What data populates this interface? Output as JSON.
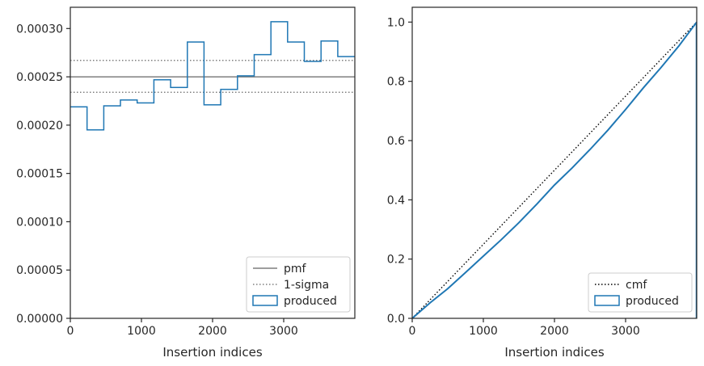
{
  "chart_data": [
    {
      "type": "step-histogram",
      "xlabel": "Insertion indices",
      "ylabel": "",
      "xlim": [
        0,
        4000
      ],
      "ylim": [
        0,
        0.000322
      ],
      "xticks": [
        0,
        1000,
        2000,
        3000
      ],
      "yticks": [
        0,
        5e-05,
        0.0001,
        0.00015,
        0.0002,
        0.00025,
        0.0003
      ],
      "ytick_labels": [
        "0.00000",
        "0.00005",
        "0.00010",
        "0.00015",
        "0.00020",
        "0.00025",
        "0.00030"
      ],
      "bin_edges": [
        0,
        235,
        470,
        705,
        940,
        1175,
        1410,
        1645,
        1880,
        2115,
        2350,
        2585,
        2820,
        3055,
        3290,
        3525,
        3760,
        4000
      ],
      "values": [
        0.000219,
        0.000195,
        0.00022,
        0.000226,
        0.000223,
        0.000247,
        0.000239,
        0.000286,
        0.000221,
        0.000237,
        0.000251,
        0.000273,
        0.000307,
        0.000286,
        0.000266,
        0.000287,
        0.000271
      ],
      "pmf": 0.00025,
      "sigma_band": [
        0.000234,
        0.000267
      ],
      "legend": {
        "position": "lower-right",
        "entries": [
          {
            "label": "pmf",
            "style": "solid-line",
            "color": "#7f7f7f"
          },
          {
            "label": "1-sigma",
            "style": "dotted-line",
            "color": "#7f7f7f"
          },
          {
            "label": "produced",
            "style": "patch",
            "color": "#1f77b4"
          }
        ]
      },
      "colors": {
        "produced": "#1f77b4",
        "reference": "#7f7f7f"
      }
    },
    {
      "type": "line",
      "xlabel": "Insertion indices",
      "ylabel": "",
      "xlim": [
        0,
        4000
      ],
      "ylim": [
        0,
        1.05
      ],
      "xticks": [
        0,
        1000,
        2000,
        3000
      ],
      "yticks": [
        0,
        0.2,
        0.4,
        0.6,
        0.8,
        1.0
      ],
      "ytick_labels": [
        "0.0",
        "0.2",
        "0.4",
        "0.6",
        "0.8",
        "1.0"
      ],
      "cmf": {
        "x": [
          0,
          4000
        ],
        "y": [
          0,
          1.0
        ],
        "style": "dotted",
        "color": "#000000"
      },
      "produced": {
        "x": [
          0,
          250,
          500,
          750,
          1000,
          1250,
          1500,
          1750,
          2000,
          2250,
          2500,
          2750,
          3000,
          3250,
          3500,
          3750,
          4000
        ],
        "y": [
          0,
          0.052,
          0.1,
          0.155,
          0.21,
          0.265,
          0.323,
          0.385,
          0.45,
          0.508,
          0.57,
          0.635,
          0.705,
          0.778,
          0.847,
          0.92,
          1.0
        ],
        "color": "#1f77b4"
      },
      "legend": {
        "position": "lower-right",
        "entries": [
          {
            "label": "cmf",
            "style": "dotted-line",
            "color": "#000000"
          },
          {
            "label": "produced",
            "style": "patch",
            "color": "#1f77b4"
          }
        ]
      }
    }
  ]
}
